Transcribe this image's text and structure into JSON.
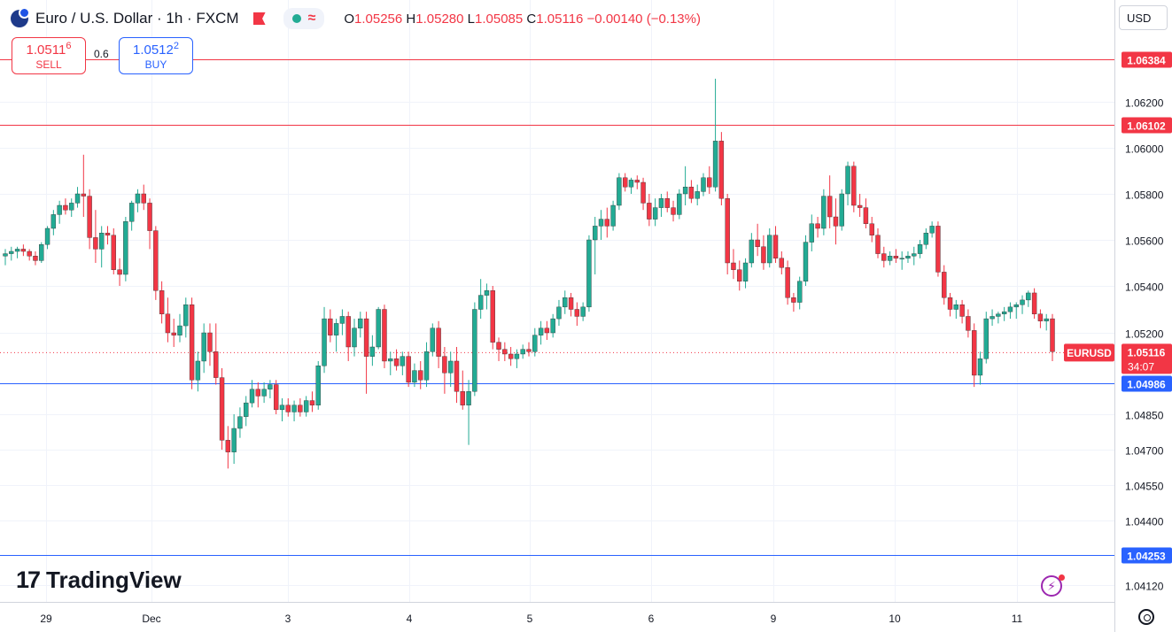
{
  "header": {
    "symbol_title": "Euro / U.S. Dollar · 1h · FXCM",
    "ohlc": {
      "o_label": "O",
      "o": "1.05256",
      "h_label": "H",
      "h": "1.05280",
      "l_label": "L",
      "l": "1.05085",
      "c_label": "C",
      "c": "1.05116",
      "change": "−0.00140 (−0.13%)"
    },
    "wave_symbol": "≈"
  },
  "trade": {
    "sell_price_main": "1.0511",
    "sell_price_sup": "6",
    "sell_label": "SELL",
    "buy_price_main": "1.0512",
    "buy_price_sup": "2",
    "buy_label": "BUY",
    "spread": "0.6"
  },
  "currency": "USD",
  "branding": {
    "logo_mark": "17",
    "logo_text": "TradingView"
  },
  "icons": [
    "flag-icon",
    "status-dot-icon",
    "wave-icon",
    "bolt-icon",
    "settings-icon"
  ],
  "colors": {
    "up": "#22ab94",
    "down": "#f23645",
    "resistance": "#f23645",
    "support": "#2962ff",
    "grid": "#f0f3fa"
  },
  "chart_data": {
    "type": "candlestick",
    "symbol": "EURUSD",
    "timeframe": "1h",
    "current_price": "1.05116",
    "countdown": "34:07",
    "y_ticks": [
      "1.06200",
      "1.06000",
      "1.05800",
      "1.05600",
      "1.05400",
      "1.05200",
      "1.04850",
      "1.04700",
      "1.04550",
      "1.04400",
      "1.04120"
    ],
    "y_ticks_num": [
      1.062,
      1.06,
      1.058,
      1.056,
      1.054,
      1.052,
      1.0485,
      1.047,
      1.0455,
      1.044,
      1.0412
    ],
    "x_labels": [
      "29",
      "Dec",
      "3",
      "4",
      "5",
      "6",
      "9",
      "10",
      "11"
    ],
    "price_lines": [
      {
        "label": "1.06384",
        "value": 1.06384,
        "color": "#f23645"
      },
      {
        "label": "1.06102",
        "value": 1.06102,
        "color": "#f23645"
      },
      {
        "label": "1.04986",
        "value": 1.04986,
        "color": "#2962ff"
      },
      {
        "label": "1.04253",
        "value": 1.04253,
        "color": "#2962ff"
      }
    ],
    "candles": [
      [
        1.0553,
        1.0556,
        1.0549,
        1.0554
      ],
      [
        1.0554,
        1.0557,
        1.0551,
        1.0555
      ],
      [
        1.0555,
        1.0557,
        1.0552,
        1.0556
      ],
      [
        1.0556,
        1.0558,
        1.0553,
        1.0555
      ],
      [
        1.0555,
        1.0556,
        1.0551,
        1.0553
      ],
      [
        1.0553,
        1.0555,
        1.0549,
        1.0551
      ],
      [
        1.0551,
        1.0559,
        1.055,
        1.0558
      ],
      [
        1.0558,
        1.0566,
        1.0556,
        1.0565
      ],
      [
        1.0565,
        1.0573,
        1.0562,
        1.0571
      ],
      [
        1.0571,
        1.0577,
        1.0567,
        1.0575
      ],
      [
        1.0575,
        1.0578,
        1.0571,
        1.0573
      ],
      [
        1.0573,
        1.0578,
        1.057,
        1.0576
      ],
      [
        1.0576,
        1.0583,
        1.0574,
        1.058
      ],
      [
        1.058,
        1.0597,
        1.057,
        1.0579
      ],
      [
        1.0579,
        1.0582,
        1.0556,
        1.0561
      ],
      [
        1.0561,
        1.0573,
        1.055,
        1.0556
      ],
      [
        1.0556,
        1.0566,
        1.0548,
        1.0563
      ],
      [
        1.0563,
        1.0566,
        1.0558,
        1.0562
      ],
      [
        1.0562,
        1.0565,
        1.0545,
        1.0547
      ],
      [
        1.0547,
        1.0552,
        1.054,
        1.0545
      ],
      [
        1.0545,
        1.057,
        1.0542,
        1.0568
      ],
      [
        1.0568,
        1.0577,
        1.0564,
        1.0576
      ],
      [
        1.0576,
        1.0582,
        1.0572,
        1.058
      ],
      [
        1.058,
        1.0584,
        1.0573,
        1.0576
      ],
      [
        1.0576,
        1.0578,
        1.0556,
        1.0564
      ],
      [
        1.0564,
        1.0566,
        1.0534,
        1.0538
      ],
      [
        1.0538,
        1.0542,
        1.0524,
        1.0528
      ],
      [
        1.0528,
        1.0535,
        1.0516,
        1.052
      ],
      [
        1.052,
        1.0526,
        1.0514,
        1.0519
      ],
      [
        1.0519,
        1.0528,
        1.0516,
        1.0523
      ],
      [
        1.0523,
        1.0535,
        1.0518,
        1.0532
      ],
      [
        1.0532,
        1.0535,
        1.0496,
        1.05
      ],
      [
        1.05,
        1.0512,
        1.0495,
        1.0508
      ],
      [
        1.0508,
        1.0524,
        1.0503,
        1.052
      ],
      [
        1.052,
        1.0524,
        1.0506,
        1.0512
      ],
      [
        1.0512,
        1.0524,
        1.0498,
        1.0501
      ],
      [
        1.0501,
        1.0505,
        1.047,
        1.0474
      ],
      [
        1.0474,
        1.048,
        1.0462,
        1.0469
      ],
      [
        1.0469,
        1.0485,
        1.0464,
        1.0479
      ],
      [
        1.0479,
        1.0488,
        1.0475,
        1.0484
      ],
      [
        1.0484,
        1.0493,
        1.048,
        1.049
      ],
      [
        1.049,
        1.05,
        1.0488,
        1.0496
      ],
      [
        1.0496,
        1.0499,
        1.0488,
        1.0493
      ],
      [
        1.0493,
        1.0499,
        1.049,
        1.0496
      ],
      [
        1.0496,
        1.05,
        1.0492,
        1.0498
      ],
      [
        1.0498,
        1.05,
        1.0485,
        1.0487
      ],
      [
        1.0487,
        1.0492,
        1.0482,
        1.0489
      ],
      [
        1.0489,
        1.0492,
        1.0484,
        1.0486
      ],
      [
        1.0486,
        1.0491,
        1.0482,
        1.0489
      ],
      [
        1.0489,
        1.0492,
        1.0484,
        1.0486
      ],
      [
        1.0486,
        1.0493,
        1.0484,
        1.0491
      ],
      [
        1.0491,
        1.0495,
        1.0486,
        1.0489
      ],
      [
        1.0489,
        1.0508,
        1.0487,
        1.0506
      ],
      [
        1.0506,
        1.0531,
        1.0503,
        1.0526
      ],
      [
        1.0526,
        1.053,
        1.0516,
        1.0519
      ],
      [
        1.0519,
        1.0526,
        1.0512,
        1.0524
      ],
      [
        1.0524,
        1.053,
        1.0519,
        1.0527
      ],
      [
        1.0527,
        1.0529,
        1.0508,
        1.0514
      ],
      [
        1.0514,
        1.0526,
        1.051,
        1.0522
      ],
      [
        1.0522,
        1.0529,
        1.0518,
        1.0526
      ],
      [
        1.0526,
        1.0529,
        1.0494,
        1.051
      ],
      [
        1.051,
        1.0519,
        1.0506,
        1.0514
      ],
      [
        1.0514,
        1.0531,
        1.0513,
        1.053
      ],
      [
        1.053,
        1.0532,
        1.0505,
        1.0508
      ],
      [
        1.0508,
        1.0512,
        1.0502,
        1.0509
      ],
      [
        1.0509,
        1.0513,
        1.0504,
        1.0506
      ],
      [
        1.0506,
        1.0512,
        1.0502,
        1.051
      ],
      [
        1.051,
        1.0512,
        1.0497,
        1.0499
      ],
      [
        1.0499,
        1.0507,
        1.0497,
        1.0504
      ],
      [
        1.0504,
        1.0508,
        1.0496,
        1.05
      ],
      [
        1.05,
        1.0516,
        1.0497,
        1.0512
      ],
      [
        1.0512,
        1.0524,
        1.051,
        1.0522
      ],
      [
        1.0522,
        1.0525,
        1.0505,
        1.051
      ],
      [
        1.051,
        1.0514,
        1.0494,
        1.0503
      ],
      [
        1.0503,
        1.0512,
        1.0497,
        1.0508
      ],
      [
        1.0508,
        1.0514,
        1.049,
        1.0495
      ],
      [
        1.0495,
        1.0504,
        1.0487,
        1.0489
      ],
      [
        1.0489,
        1.05,
        1.0472,
        1.0495
      ],
      [
        1.0495,
        1.0533,
        1.0493,
        1.053
      ],
      [
        1.053,
        1.0543,
        1.0526,
        1.0536
      ],
      [
        1.0536,
        1.0541,
        1.053,
        1.0538
      ],
      [
        1.0538,
        1.054,
        1.0513,
        1.0516
      ],
      [
        1.0516,
        1.0518,
        1.0508,
        1.0513
      ],
      [
        1.0513,
        1.0516,
        1.0508,
        1.0511
      ],
      [
        1.0511,
        1.0514,
        1.0506,
        1.0509
      ],
      [
        1.0509,
        1.0513,
        1.0505,
        1.0511
      ],
      [
        1.0511,
        1.0515,
        1.0509,
        1.0513
      ],
      [
        1.0513,
        1.0516,
        1.051,
        1.0512
      ],
      [
        1.0512,
        1.0522,
        1.051,
        1.0519
      ],
      [
        1.0519,
        1.0525,
        1.0515,
        1.0522
      ],
      [
        1.0522,
        1.0525,
        1.0517,
        1.052
      ],
      [
        1.052,
        1.0528,
        1.0518,
        1.0526
      ],
      [
        1.0526,
        1.0534,
        1.0523,
        1.0531
      ],
      [
        1.0531,
        1.0538,
        1.0528,
        1.0535
      ],
      [
        1.0535,
        1.0537,
        1.0527,
        1.053
      ],
      [
        1.053,
        1.0533,
        1.0523,
        1.0527
      ],
      [
        1.0527,
        1.0533,
        1.0525,
        1.0531
      ],
      [
        1.0531,
        1.0562,
        1.0529,
        1.056
      ],
      [
        1.056,
        1.057,
        1.0545,
        1.0566
      ],
      [
        1.0566,
        1.0573,
        1.056,
        1.0569
      ],
      [
        1.0569,
        1.0574,
        1.0561,
        1.0566
      ],
      [
        1.0566,
        1.0577,
        1.0564,
        1.0575
      ],
      [
        1.0575,
        1.0589,
        1.0573,
        1.0587
      ],
      [
        1.0587,
        1.0589,
        1.0581,
        1.0583
      ],
      [
        1.0583,
        1.0587,
        1.058,
        1.0586
      ],
      [
        1.0586,
        1.0588,
        1.0582,
        1.0585
      ],
      [
        1.0585,
        1.0587,
        1.0573,
        1.0576
      ],
      [
        1.0576,
        1.058,
        1.0566,
        1.0569
      ],
      [
        1.0569,
        1.0578,
        1.0566,
        1.0574
      ],
      [
        1.0574,
        1.058,
        1.057,
        1.0578
      ],
      [
        1.0578,
        1.0581,
        1.0572,
        1.0574
      ],
      [
        1.0574,
        1.0577,
        1.0568,
        1.0571
      ],
      [
        1.0571,
        1.0582,
        1.0569,
        1.058
      ],
      [
        1.058,
        1.0592,
        1.0575,
        1.0583
      ],
      [
        1.0583,
        1.0586,
        1.0576,
        1.0578
      ],
      [
        1.0578,
        1.0584,
        1.0575,
        1.0581
      ],
      [
        1.0581,
        1.0589,
        1.0579,
        1.0587
      ],
      [
        1.0587,
        1.0592,
        1.058,
        1.0583
      ],
      [
        1.0583,
        1.063,
        1.0581,
        1.0603
      ],
      [
        1.0603,
        1.0607,
        1.0575,
        1.0578
      ],
      [
        1.0578,
        1.058,
        1.0545,
        1.055
      ],
      [
        1.055,
        1.0556,
        1.0543,
        1.0547
      ],
      [
        1.0547,
        1.0551,
        1.0538,
        1.0542
      ],
      [
        1.0542,
        1.0552,
        1.0539,
        1.055
      ],
      [
        1.055,
        1.0563,
        1.0548,
        1.056
      ],
      [
        1.056,
        1.0567,
        1.0553,
        1.0557
      ],
      [
        1.0557,
        1.0562,
        1.0547,
        1.055
      ],
      [
        1.055,
        1.0565,
        1.0548,
        1.0562
      ],
      [
        1.0562,
        1.0566,
        1.055,
        1.0552
      ],
      [
        1.0552,
        1.0555,
        1.0545,
        1.0548
      ],
      [
        1.0548,
        1.0551,
        1.0532,
        1.0535
      ],
      [
        1.0535,
        1.0537,
        1.0529,
        1.0533
      ],
      [
        1.0533,
        1.0544,
        1.053,
        1.0542
      ],
      [
        1.0542,
        1.0562,
        1.054,
        1.0559
      ],
      [
        1.0559,
        1.0571,
        1.0555,
        1.0567
      ],
      [
        1.0567,
        1.057,
        1.0561,
        1.0565
      ],
      [
        1.0565,
        1.0582,
        1.0562,
        1.0579
      ],
      [
        1.0579,
        1.0588,
        1.0565,
        1.057
      ],
      [
        1.057,
        1.0578,
        1.0558,
        1.0566
      ],
      [
        1.0566,
        1.0582,
        1.0564,
        1.058
      ],
      [
        1.058,
        1.0594,
        1.0575,
        1.0592
      ],
      [
        1.0592,
        1.0594,
        1.0572,
        1.0575
      ],
      [
        1.0575,
        1.058,
        1.057,
        1.0574
      ],
      [
        1.0574,
        1.0578,
        1.0565,
        1.0567
      ],
      [
        1.0567,
        1.057,
        1.0559,
        1.0562
      ],
      [
        1.0562,
        1.0565,
        1.0552,
        1.0554
      ],
      [
        1.0554,
        1.0557,
        1.0548,
        1.0551
      ],
      [
        1.0551,
        1.0555,
        1.0549,
        1.0553
      ],
      [
        1.0553,
        1.0556,
        1.055,
        1.0552
      ],
      [
        1.0552,
        1.0555,
        1.0547,
        1.0552
      ],
      [
        1.0552,
        1.0555,
        1.055,
        1.0553
      ],
      [
        1.0553,
        1.0557,
        1.0549,
        1.0554
      ],
      [
        1.0554,
        1.056,
        1.0552,
        1.0558
      ],
      [
        1.0558,
        1.0565,
        1.0556,
        1.0563
      ],
      [
        1.0563,
        1.0568,
        1.0561,
        1.0566
      ],
      [
        1.0566,
        1.0568,
        1.0544,
        1.0546
      ],
      [
        1.0546,
        1.0549,
        1.0532,
        1.0535
      ],
      [
        1.0535,
        1.0537,
        1.0527,
        1.053
      ],
      [
        1.053,
        1.0534,
        1.0526,
        1.0532
      ],
      [
        1.0532,
        1.0534,
        1.0524,
        1.0527
      ],
      [
        1.0527,
        1.053,
        1.0518,
        1.0521
      ],
      [
        1.0521,
        1.0524,
        1.0497,
        1.0502
      ],
      [
        1.0502,
        1.0512,
        1.0498,
        1.0509
      ],
      [
        1.0509,
        1.0529,
        1.0507,
        1.0526
      ],
      [
        1.0526,
        1.053,
        1.0523,
        1.0527
      ],
      [
        1.0527,
        1.0529,
        1.0524,
        1.0528
      ],
      [
        1.0528,
        1.0531,
        1.0525,
        1.0529
      ],
      [
        1.0529,
        1.0533,
        1.0526,
        1.0531
      ],
      [
        1.0531,
        1.0533,
        1.0526,
        1.0532
      ],
      [
        1.0532,
        1.0536,
        1.0528,
        1.0534
      ],
      [
        1.0534,
        1.0538,
        1.0531,
        1.0537
      ],
      [
        1.0537,
        1.0539,
        1.0526,
        1.0528
      ],
      [
        1.0528,
        1.053,
        1.0522,
        1.0525
      ],
      [
        1.0525,
        1.0528,
        1.0521,
        1.0526
      ],
      [
        1.0526,
        1.0528,
        1.0508,
        1.0512
      ]
    ]
  }
}
